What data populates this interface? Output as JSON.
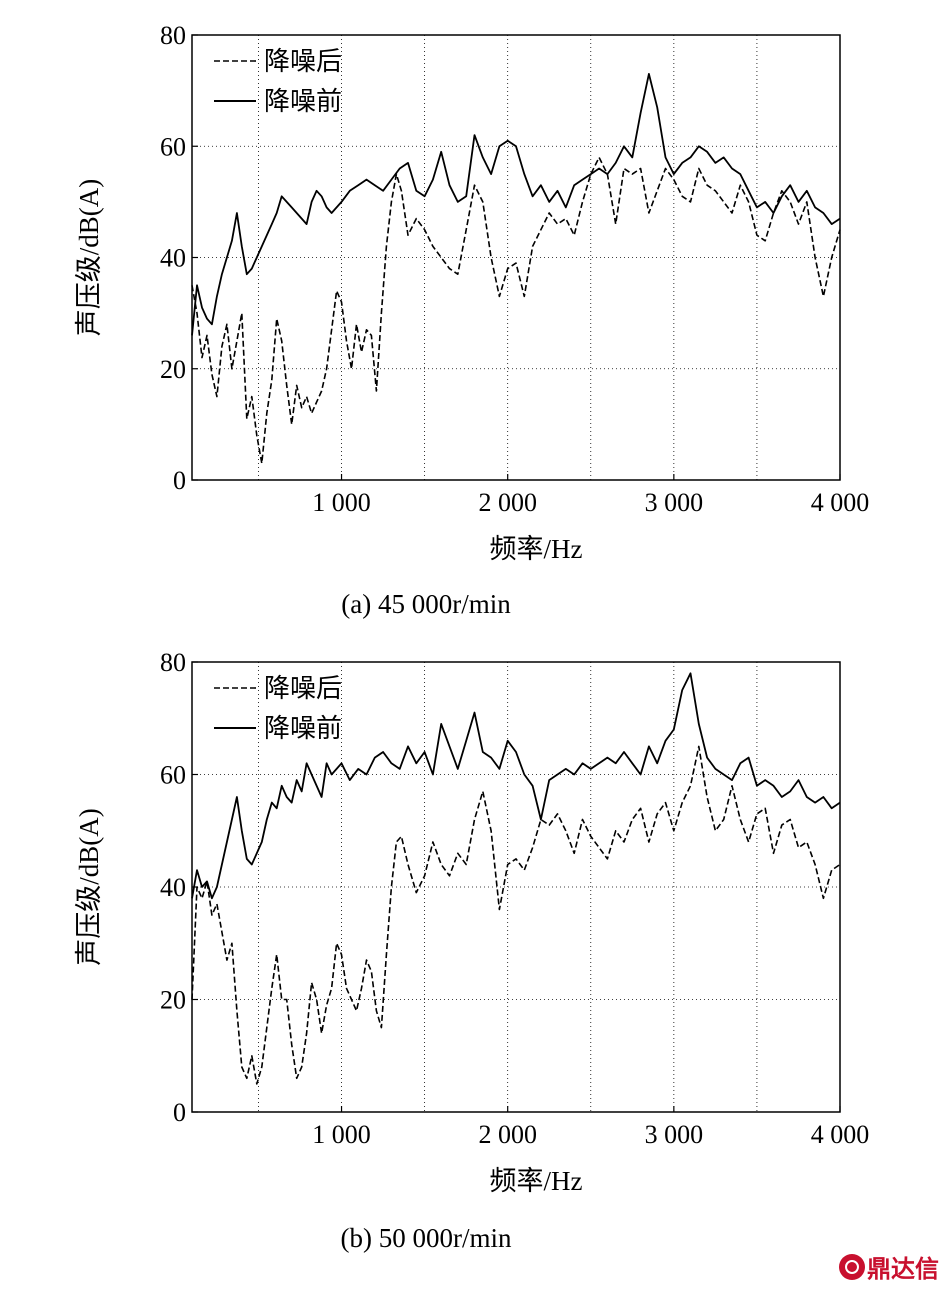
{
  "watermark": "鼎达信",
  "chart_data": [
    {
      "type": "line",
      "caption": "(a) 45 000r/min",
      "xlabel": "频率/Hz",
      "ylabel": "声压级/dB(A)",
      "xlim": [
        100,
        4000
      ],
      "ylim": [
        0,
        80
      ],
      "xticks": [
        1000,
        2000,
        3000,
        4000
      ],
      "xtick_labels": [
        "1 000",
        "2 000",
        "3 000",
        "4 000"
      ],
      "yticks": [
        0,
        20,
        40,
        60,
        80
      ],
      "ytick_labels": [
        "0",
        "20",
        "40",
        "60",
        "80"
      ],
      "grid": true,
      "legend_position": "top-left",
      "series": [
        {
          "name": "降噪后",
          "style": "dashed",
          "x": [
            100,
            130,
            160,
            190,
            220,
            250,
            280,
            310,
            340,
            370,
            400,
            430,
            460,
            490,
            520,
            550,
            580,
            610,
            640,
            670,
            700,
            730,
            760,
            790,
            820,
            850,
            880,
            910,
            940,
            970,
            1000,
            1030,
            1060,
            1090,
            1120,
            1150,
            1180,
            1210,
            1240,
            1270,
            1300,
            1330,
            1360,
            1400,
            1450,
            1500,
            1550,
            1600,
            1650,
            1700,
            1750,
            1800,
            1850,
            1900,
            1950,
            2000,
            2050,
            2100,
            2150,
            2200,
            2250,
            2300,
            2350,
            2400,
            2450,
            2500,
            2550,
            2600,
            2650,
            2700,
            2750,
            2800,
            2850,
            2900,
            2950,
            3000,
            3050,
            3100,
            3150,
            3200,
            3250,
            3300,
            3350,
            3400,
            3450,
            3500,
            3550,
            3600,
            3650,
            3700,
            3750,
            3800,
            3850,
            3900,
            3950,
            4000
          ],
          "y": [
            35,
            30,
            22,
            26,
            19,
            15,
            24,
            28,
            20,
            25,
            30,
            11,
            15,
            8,
            3,
            12,
            18,
            29,
            25,
            17,
            10,
            17,
            13,
            15,
            12,
            14,
            16,
            20,
            27,
            34,
            32,
            25,
            20,
            28,
            23,
            27,
            26,
            16,
            30,
            42,
            50,
            55,
            52,
            44,
            47,
            45,
            42,
            40,
            38,
            37,
            45,
            53,
            50,
            40,
            33,
            38,
            39,
            33,
            42,
            45,
            48,
            46,
            47,
            44,
            50,
            55,
            58,
            55,
            46,
            56,
            55,
            56,
            48,
            52,
            56,
            54,
            51,
            50,
            56,
            53,
            52,
            50,
            48,
            53,
            50,
            44,
            43,
            48,
            52,
            50,
            46,
            50,
            40,
            33,
            40,
            45
          ]
        },
        {
          "name": "降噪前",
          "style": "solid",
          "x": [
            100,
            130,
            160,
            190,
            220,
            250,
            280,
            310,
            340,
            370,
            400,
            430,
            460,
            490,
            520,
            550,
            580,
            610,
            640,
            670,
            700,
            730,
            760,
            790,
            820,
            850,
            880,
            910,
            940,
            970,
            1000,
            1050,
            1100,
            1150,
            1200,
            1250,
            1300,
            1350,
            1400,
            1450,
            1500,
            1550,
            1600,
            1650,
            1700,
            1750,
            1800,
            1850,
            1900,
            1950,
            2000,
            2050,
            2100,
            2150,
            2200,
            2250,
            2300,
            2350,
            2400,
            2450,
            2500,
            2550,
            2600,
            2650,
            2700,
            2750,
            2800,
            2850,
            2900,
            2950,
            3000,
            3050,
            3100,
            3150,
            3200,
            3250,
            3300,
            3350,
            3400,
            3450,
            3500,
            3550,
            3600,
            3650,
            3700,
            3750,
            3800,
            3850,
            3900,
            3950,
            4000
          ],
          "y": [
            26,
            35,
            31,
            29,
            28,
            33,
            37,
            40,
            43,
            48,
            42,
            37,
            38,
            40,
            42,
            44,
            46,
            48,
            51,
            50,
            49,
            48,
            47,
            46,
            50,
            52,
            51,
            49,
            48,
            49,
            50,
            52,
            53,
            54,
            53,
            52,
            54,
            56,
            57,
            52,
            51,
            54,
            59,
            53,
            50,
            51,
            62,
            58,
            55,
            60,
            61,
            60,
            55,
            51,
            53,
            50,
            52,
            49,
            53,
            54,
            55,
            56,
            55,
            57,
            60,
            58,
            66,
            73,
            67,
            58,
            55,
            57,
            58,
            60,
            59,
            57,
            58,
            56,
            55,
            52,
            49,
            50,
            48,
            51,
            53,
            50,
            52,
            49,
            48,
            46,
            47
          ]
        }
      ]
    },
    {
      "type": "line",
      "caption": "(b) 50 000r/min",
      "xlabel": "频率/Hz",
      "ylabel": "声压级/dB(A)",
      "xlim": [
        100,
        4000
      ],
      "ylim": [
        0,
        80
      ],
      "xticks": [
        1000,
        2000,
        3000,
        4000
      ],
      "xtick_labels": [
        "1 000",
        "2 000",
        "3 000",
        "4 000"
      ],
      "yticks": [
        0,
        20,
        40,
        60,
        80
      ],
      "ytick_labels": [
        "0",
        "20",
        "40",
        "60",
        "80"
      ],
      "grid": true,
      "legend_position": "top-left",
      "series": [
        {
          "name": "降噪后",
          "style": "dashed",
          "x": [
            100,
            130,
            160,
            190,
            220,
            250,
            280,
            310,
            340,
            370,
            400,
            430,
            460,
            490,
            520,
            550,
            580,
            610,
            640,
            670,
            700,
            730,
            760,
            790,
            820,
            850,
            880,
            910,
            940,
            970,
            1000,
            1030,
            1060,
            1090,
            1120,
            1150,
            1180,
            1210,
            1240,
            1270,
            1300,
            1330,
            1360,
            1400,
            1450,
            1500,
            1550,
            1600,
            1650,
            1700,
            1750,
            1800,
            1850,
            1900,
            1950,
            2000,
            2050,
            2100,
            2150,
            2200,
            2250,
            2300,
            2350,
            2400,
            2450,
            2500,
            2550,
            2600,
            2650,
            2700,
            2750,
            2800,
            2850,
            2900,
            2950,
            3000,
            3050,
            3100,
            3150,
            3200,
            3250,
            3300,
            3350,
            3400,
            3450,
            3500,
            3550,
            3600,
            3650,
            3700,
            3750,
            3800,
            3850,
            3900,
            3950,
            4000
          ],
          "y": [
            20,
            40,
            38,
            41,
            35,
            37,
            32,
            27,
            30,
            18,
            8,
            6,
            10,
            5,
            8,
            15,
            22,
            28,
            20,
            20,
            12,
            6,
            8,
            14,
            23,
            20,
            14,
            19,
            22,
            30,
            28,
            22,
            20,
            18,
            22,
            27,
            25,
            18,
            15,
            28,
            40,
            48,
            49,
            44,
            39,
            42,
            48,
            44,
            42,
            46,
            44,
            52,
            57,
            50,
            36,
            44,
            45,
            43,
            47,
            52,
            51,
            53,
            50,
            46,
            52,
            49,
            47,
            45,
            50,
            48,
            52,
            54,
            48,
            53,
            55,
            50,
            55,
            58,
            65,
            56,
            50,
            52,
            58,
            52,
            48,
            53,
            54,
            46,
            51,
            52,
            47,
            48,
            44,
            38,
            43,
            44
          ]
        },
        {
          "name": "降噪前",
          "style": "solid",
          "x": [
            100,
            130,
            160,
            190,
            220,
            250,
            280,
            310,
            340,
            370,
            400,
            430,
            460,
            490,
            520,
            550,
            580,
            610,
            640,
            670,
            700,
            730,
            760,
            790,
            820,
            850,
            880,
            910,
            940,
            970,
            1000,
            1050,
            1100,
            1150,
            1200,
            1250,
            1300,
            1350,
            1400,
            1450,
            1500,
            1550,
            1600,
            1650,
            1700,
            1750,
            1800,
            1850,
            1900,
            1950,
            2000,
            2050,
            2100,
            2150,
            2200,
            2250,
            2300,
            2350,
            2400,
            2450,
            2500,
            2550,
            2600,
            2650,
            2700,
            2750,
            2800,
            2850,
            2900,
            2950,
            3000,
            3050,
            3100,
            3150,
            3200,
            3250,
            3300,
            3350,
            3400,
            3450,
            3500,
            3550,
            3600,
            3650,
            3700,
            3750,
            3800,
            3850,
            3900,
            3950,
            4000
          ],
          "y": [
            38,
            43,
            40,
            41,
            38,
            40,
            44,
            48,
            52,
            56,
            50,
            45,
            44,
            46,
            48,
            52,
            55,
            54,
            58,
            56,
            55,
            59,
            57,
            62,
            60,
            58,
            56,
            62,
            60,
            61,
            62,
            59,
            61,
            60,
            63,
            64,
            62,
            61,
            65,
            62,
            64,
            60,
            69,
            65,
            61,
            66,
            71,
            64,
            63,
            61,
            66,
            64,
            60,
            58,
            52,
            59,
            60,
            61,
            60,
            62,
            61,
            62,
            63,
            62,
            64,
            62,
            60,
            65,
            62,
            66,
            68,
            75,
            78,
            69,
            63,
            61,
            60,
            59,
            62,
            63,
            58,
            59,
            58,
            56,
            57,
            59,
            56,
            55,
            56,
            54,
            55
          ]
        }
      ]
    }
  ]
}
